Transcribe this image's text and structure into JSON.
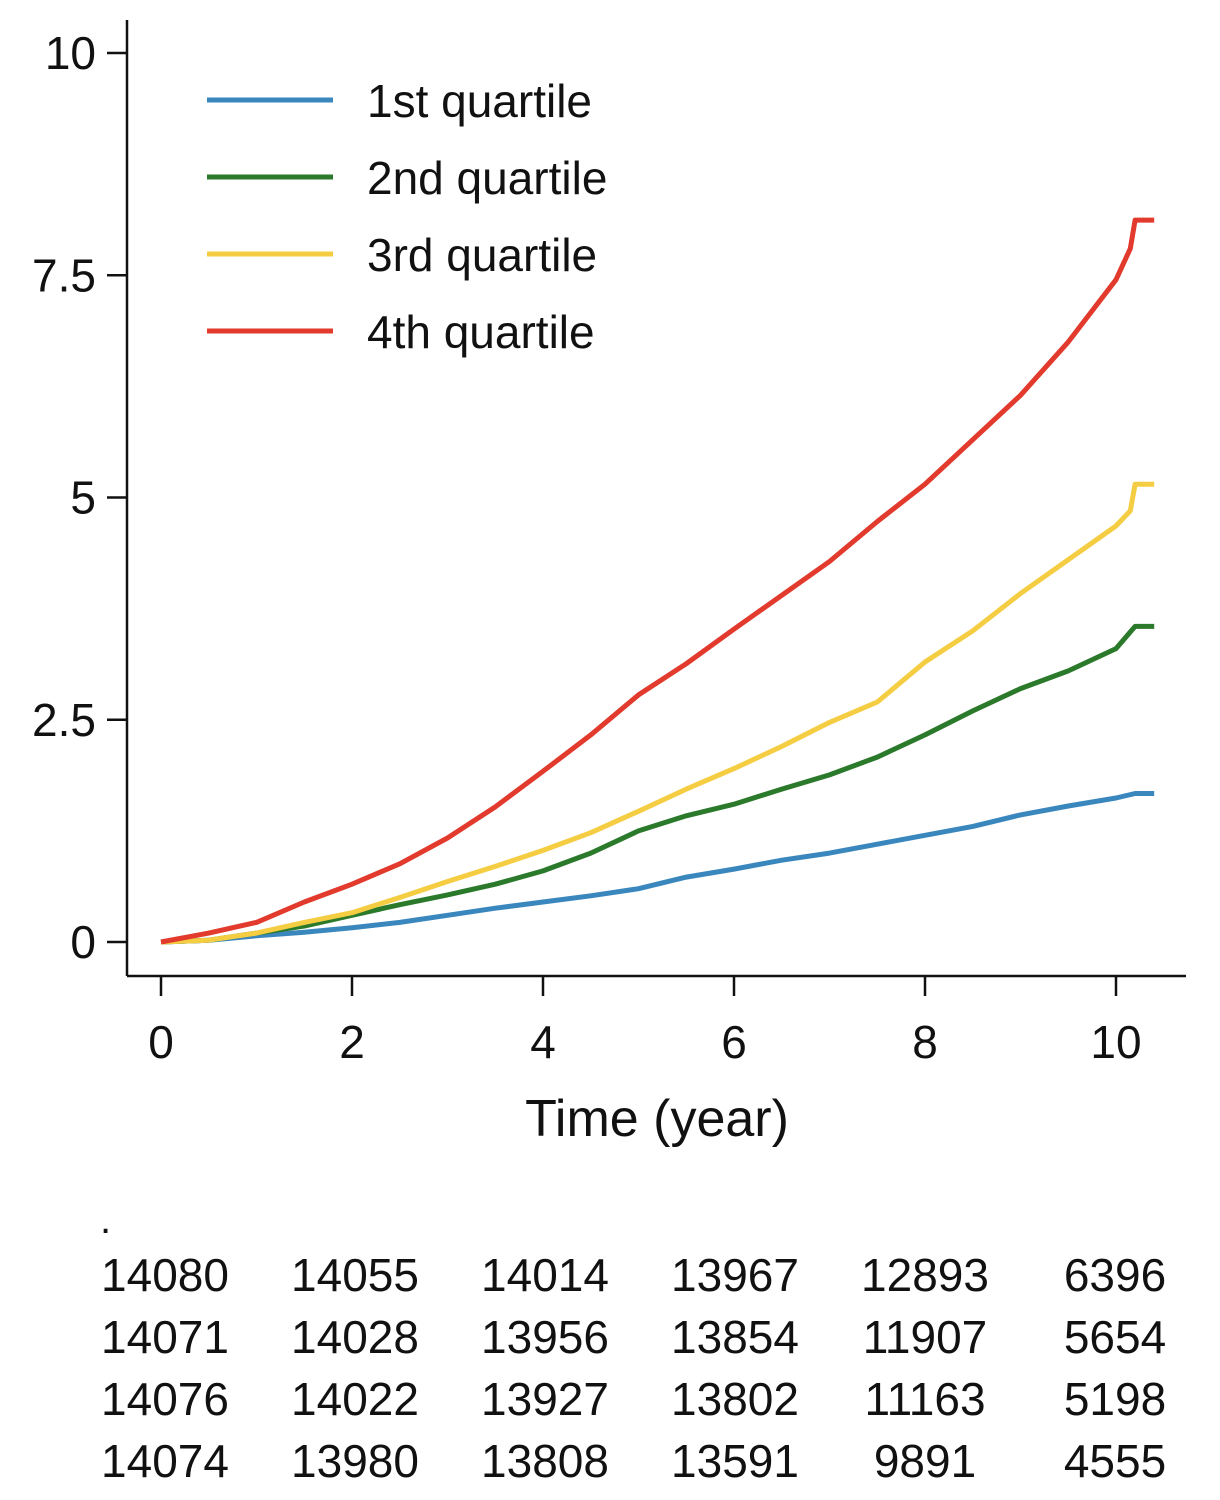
{
  "chart_data": {
    "type": "line",
    "title": "",
    "xlabel": "Time (year)",
    "ylabel": "",
    "xlim": [
      0,
      10.4
    ],
    "ylim": [
      0,
      10
    ],
    "x_ticks": [
      "0",
      "2",
      "4",
      "6",
      "8",
      "10"
    ],
    "y_ticks": [
      "0",
      "2.5",
      "5",
      "7.5",
      "10"
    ],
    "legend_position": "top-left",
    "series": [
      {
        "name": "1st quartile",
        "color": "#3a87be",
        "points": [
          [
            0,
            0
          ],
          [
            0.5,
            0.02
          ],
          [
            1,
            0.07
          ],
          [
            1.5,
            0.11
          ],
          [
            2,
            0.16
          ],
          [
            2.5,
            0.22
          ],
          [
            3,
            0.3
          ],
          [
            3.5,
            0.38
          ],
          [
            4,
            0.45
          ],
          [
            4.5,
            0.52
          ],
          [
            5,
            0.6
          ],
          [
            5.5,
            0.73
          ],
          [
            6,
            0.82
          ],
          [
            6.5,
            0.92
          ],
          [
            7,
            1.0
          ],
          [
            7.5,
            1.1
          ],
          [
            8,
            1.2
          ],
          [
            8.5,
            1.3
          ],
          [
            9,
            1.43
          ],
          [
            9.5,
            1.53
          ],
          [
            10,
            1.62
          ],
          [
            10.2,
            1.67
          ],
          [
            10.4,
            1.67
          ]
        ]
      },
      {
        "name": "2nd quartile",
        "color": "#2b7a2b",
        "points": [
          [
            0,
            0
          ],
          [
            0.5,
            0.02
          ],
          [
            1,
            0.1
          ],
          [
            1.5,
            0.18
          ],
          [
            2,
            0.3
          ],
          [
            2.5,
            0.42
          ],
          [
            3,
            0.53
          ],
          [
            3.5,
            0.65
          ],
          [
            4,
            0.8
          ],
          [
            4.5,
            1.0
          ],
          [
            5,
            1.25
          ],
          [
            5.5,
            1.42
          ],
          [
            6,
            1.55
          ],
          [
            6.5,
            1.72
          ],
          [
            7,
            1.88
          ],
          [
            7.5,
            2.08
          ],
          [
            8,
            2.33
          ],
          [
            8.5,
            2.6
          ],
          [
            9,
            2.85
          ],
          [
            9.5,
            3.05
          ],
          [
            10,
            3.3
          ],
          [
            10.2,
            3.55
          ],
          [
            10.4,
            3.55
          ]
        ]
      },
      {
        "name": "3rd quartile",
        "color": "#f5cd42",
        "points": [
          [
            0,
            0
          ],
          [
            0.5,
            0.02
          ],
          [
            1,
            0.1
          ],
          [
            1.5,
            0.22
          ],
          [
            2,
            0.33
          ],
          [
            2.5,
            0.5
          ],
          [
            3,
            0.68
          ],
          [
            3.5,
            0.85
          ],
          [
            4,
            1.03
          ],
          [
            4.5,
            1.23
          ],
          [
            5,
            1.47
          ],
          [
            5.5,
            1.72
          ],
          [
            6,
            1.95
          ],
          [
            6.5,
            2.2
          ],
          [
            7,
            2.47
          ],
          [
            7.5,
            2.7
          ],
          [
            8,
            3.15
          ],
          [
            8.5,
            3.5
          ],
          [
            9,
            3.92
          ],
          [
            9.5,
            4.3
          ],
          [
            10,
            4.68
          ],
          [
            10.15,
            4.85
          ],
          [
            10.2,
            5.15
          ],
          [
            10.4,
            5.15
          ]
        ]
      },
      {
        "name": "4th quartile",
        "color": "#e23a2c",
        "points": [
          [
            0,
            0
          ],
          [
            0.5,
            0.1
          ],
          [
            1,
            0.22
          ],
          [
            1.5,
            0.45
          ],
          [
            2,
            0.65
          ],
          [
            2.5,
            0.88
          ],
          [
            3,
            1.17
          ],
          [
            3.5,
            1.52
          ],
          [
            4,
            1.92
          ],
          [
            4.5,
            2.33
          ],
          [
            5,
            2.78
          ],
          [
            5.5,
            3.13
          ],
          [
            6,
            3.52
          ],
          [
            6.5,
            3.9
          ],
          [
            7,
            4.28
          ],
          [
            7.5,
            4.73
          ],
          [
            8,
            5.15
          ],
          [
            8.5,
            5.65
          ],
          [
            9,
            6.15
          ],
          [
            9.5,
            6.75
          ],
          [
            10,
            7.45
          ],
          [
            10.15,
            7.8
          ],
          [
            10.2,
            8.12
          ],
          [
            10.4,
            8.12
          ]
        ]
      }
    ]
  },
  "risk_table": {
    "marker": ".",
    "rows": [
      [
        "14080",
        "14055",
        "14014",
        "13967",
        "12893",
        "6396"
      ],
      [
        "14071",
        "14028",
        "13956",
        "13854",
        "11907",
        "5654"
      ],
      [
        "14076",
        "14022",
        "13927",
        "13802",
        "11163",
        "5198"
      ],
      [
        "14074",
        "13980",
        "13808",
        "13591",
        "9891",
        "4555"
      ]
    ]
  }
}
